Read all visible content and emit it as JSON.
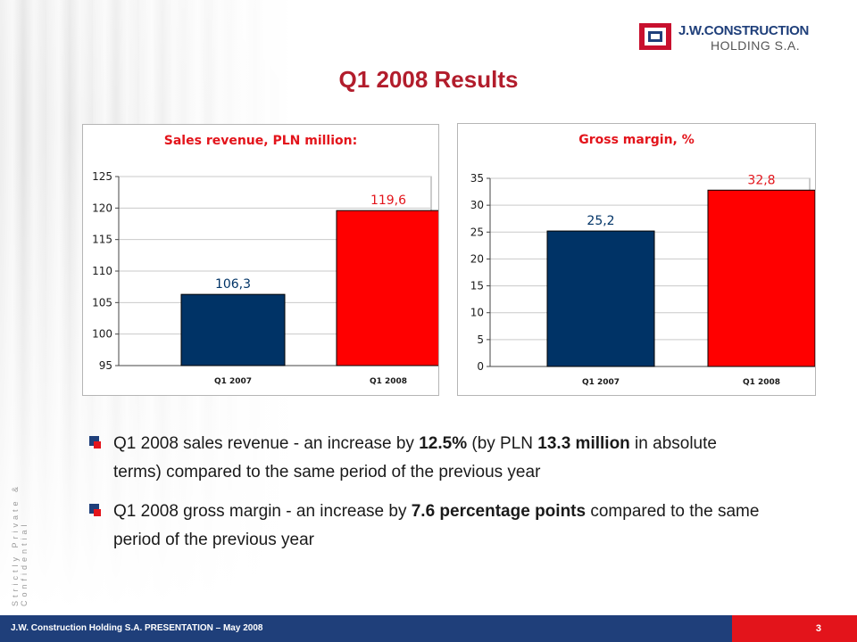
{
  "slide": {
    "title": "Q1 2008 Results",
    "page_number": "3"
  },
  "logo": {
    "line1": "J.W.CONSTRUCTION",
    "line2": "HOLDING S.A."
  },
  "sidebar_text": "Strictly Private & Confidential",
  "footer": {
    "text": "J.W. Construction Holding S.A.  PRESENTATION – May 2008"
  },
  "chart_data": [
    {
      "type": "bar",
      "title": "Sales revenue, PLN million:",
      "categories": [
        "Q1 2007",
        "Q1 2008"
      ],
      "values": [
        106.3,
        119.6
      ],
      "value_labels": [
        "106,3",
        "119,6"
      ],
      "bar_colors": [
        "#003366",
        "#ff0000"
      ],
      "ylim": [
        95,
        125
      ],
      "yticks": [
        95,
        100,
        105,
        110,
        115,
        120,
        125
      ],
      "grid": true,
      "xlabel": "",
      "ylabel": ""
    },
    {
      "type": "bar",
      "title": "Gross margin, %",
      "categories": [
        "Q1 2007",
        "Q1 2008"
      ],
      "values": [
        25.2,
        32.8
      ],
      "value_labels": [
        "25,2",
        "32,8"
      ],
      "bar_colors": [
        "#003366",
        "#ff0000"
      ],
      "ylim": [
        0,
        35
      ],
      "yticks": [
        0,
        5,
        10,
        15,
        20,
        25,
        30,
        35
      ],
      "grid": true,
      "xlabel": "",
      "ylabel": ""
    }
  ],
  "bullets": [
    {
      "parts": [
        {
          "text": "Q1 2008 sales revenue - an increase by ",
          "bold": false
        },
        {
          "text": "12.5%",
          "bold": true
        },
        {
          "text": " (by PLN ",
          "bold": false
        },
        {
          "text": "13.3 million",
          "bold": true
        },
        {
          "text": " in absolute terms) compared to the same period of the previous year",
          "bold": false
        }
      ]
    },
    {
      "parts": [
        {
          "text": "Q1 2008 gross margin - an increase by ",
          "bold": false
        },
        {
          "text": "7.6 percentage points",
          "bold": true
        },
        {
          "text": " compared to the same period of the previous year",
          "bold": false
        }
      ]
    }
  ],
  "colors": {
    "title_red": "#b21d2c",
    "chart_title_red": "#e3141b",
    "navy": "#1f3f7a",
    "bar_blue": "#003366",
    "bar_red": "#ff0000"
  }
}
